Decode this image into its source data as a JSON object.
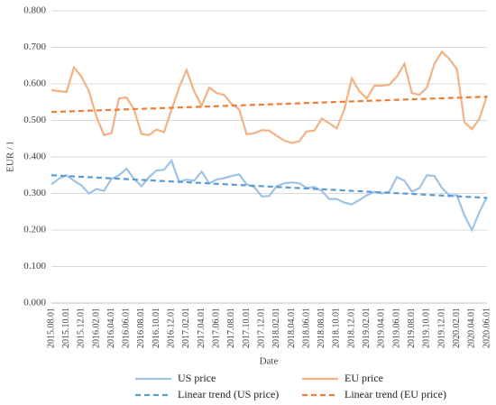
{
  "chart_data": {
    "type": "line",
    "x_label": "Date",
    "y_label": "EUR / l",
    "categories": [
      "2015.08.01",
      null,
      "2015.10.01",
      null,
      "2015.12.01",
      null,
      "2016.02.01",
      null,
      "2016.04.01",
      null,
      "2016.06.01",
      null,
      "2016.08.01",
      null,
      "2016.10.01",
      null,
      "2016.12.01",
      null,
      "2017.02.01",
      null,
      "2017.04.01",
      null,
      "2017.06.01",
      null,
      "2017.08.01",
      null,
      "2017.10.01",
      null,
      "2017.12.01",
      null,
      "2018.02.01",
      null,
      "2018.04.01",
      null,
      "2018.06.01",
      null,
      "2018.08.01",
      null,
      "2018.10.01",
      null,
      "2018.12.01",
      null,
      "2019.02.01",
      null,
      "2019.04.01",
      null,
      "2019.06.01",
      null,
      "2019.08.01",
      null,
      "2019.10.01",
      null,
      "2019.12.01",
      null,
      "2020.02.01",
      null,
      "2020.04.01",
      null,
      "2020.06.01"
    ],
    "series": [
      {
        "name": "US price",
        "color": "#9dc3e6",
        "values": [
          0.325,
          0.34,
          0.35,
          0.335,
          0.322,
          0.3,
          0.312,
          0.307,
          0.34,
          0.35,
          0.368,
          0.34,
          0.32,
          0.345,
          0.363,
          0.365,
          0.39,
          0.332,
          0.338,
          0.335,
          0.36,
          0.328,
          0.338,
          0.342,
          0.348,
          0.352,
          0.325,
          0.318,
          0.292,
          0.293,
          0.32,
          0.328,
          0.33,
          0.328,
          0.315,
          0.318,
          0.307,
          0.285,
          0.285,
          0.275,
          0.27,
          0.282,
          0.295,
          0.305,
          0.3,
          0.305,
          0.345,
          0.335,
          0.305,
          0.315,
          0.35,
          0.348,
          0.315,
          0.295,
          0.295,
          0.24,
          0.2,
          0.25,
          0.29
        ]
      },
      {
        "name": "EU price",
        "color": "#f4b183",
        "values": [
          0.583,
          0.58,
          0.578,
          0.645,
          0.62,
          0.58,
          0.51,
          0.46,
          0.465,
          0.56,
          0.563,
          0.53,
          0.463,
          0.46,
          0.475,
          0.468,
          0.53,
          0.59,
          0.638,
          0.58,
          0.54,
          0.59,
          0.575,
          0.57,
          0.545,
          0.53,
          0.462,
          0.465,
          0.473,
          0.472,
          0.458,
          0.445,
          0.438,
          0.443,
          0.47,
          0.472,
          0.505,
          0.492,
          0.478,
          0.53,
          0.615,
          0.58,
          0.56,
          0.595,
          0.595,
          0.598,
          0.62,
          0.655,
          0.575,
          0.57,
          0.59,
          0.655,
          0.688,
          0.668,
          0.64,
          0.495,
          0.476,
          0.505,
          0.568
        ]
      }
    ],
    "trends": [
      {
        "name": "Linear trend (US price)",
        "color": "#5b9bd5",
        "values": [
          0.35,
          0.288
        ]
      },
      {
        "name": "Linear trend (EU price)",
        "color": "#ed7d31",
        "values": [
          0.523,
          0.565
        ]
      }
    ],
    "ylim": [
      0,
      0.8
    ],
    "yticks": [
      {
        "value": 0,
        "label": "0.000"
      },
      {
        "value": 0.1,
        "label": "0.100"
      },
      {
        "value": 0.2,
        "label": "0.200"
      },
      {
        "value": 0.3,
        "label": "0.300"
      },
      {
        "value": 0.4,
        "label": "0.400"
      },
      {
        "value": 0.5,
        "label": "0.500"
      },
      {
        "value": 0.6,
        "label": "0.600"
      },
      {
        "value": 0.7,
        "label": "0.700"
      },
      {
        "value": 0.8,
        "label": "0.800"
      }
    ],
    "grid": true,
    "legend": "bottom"
  }
}
